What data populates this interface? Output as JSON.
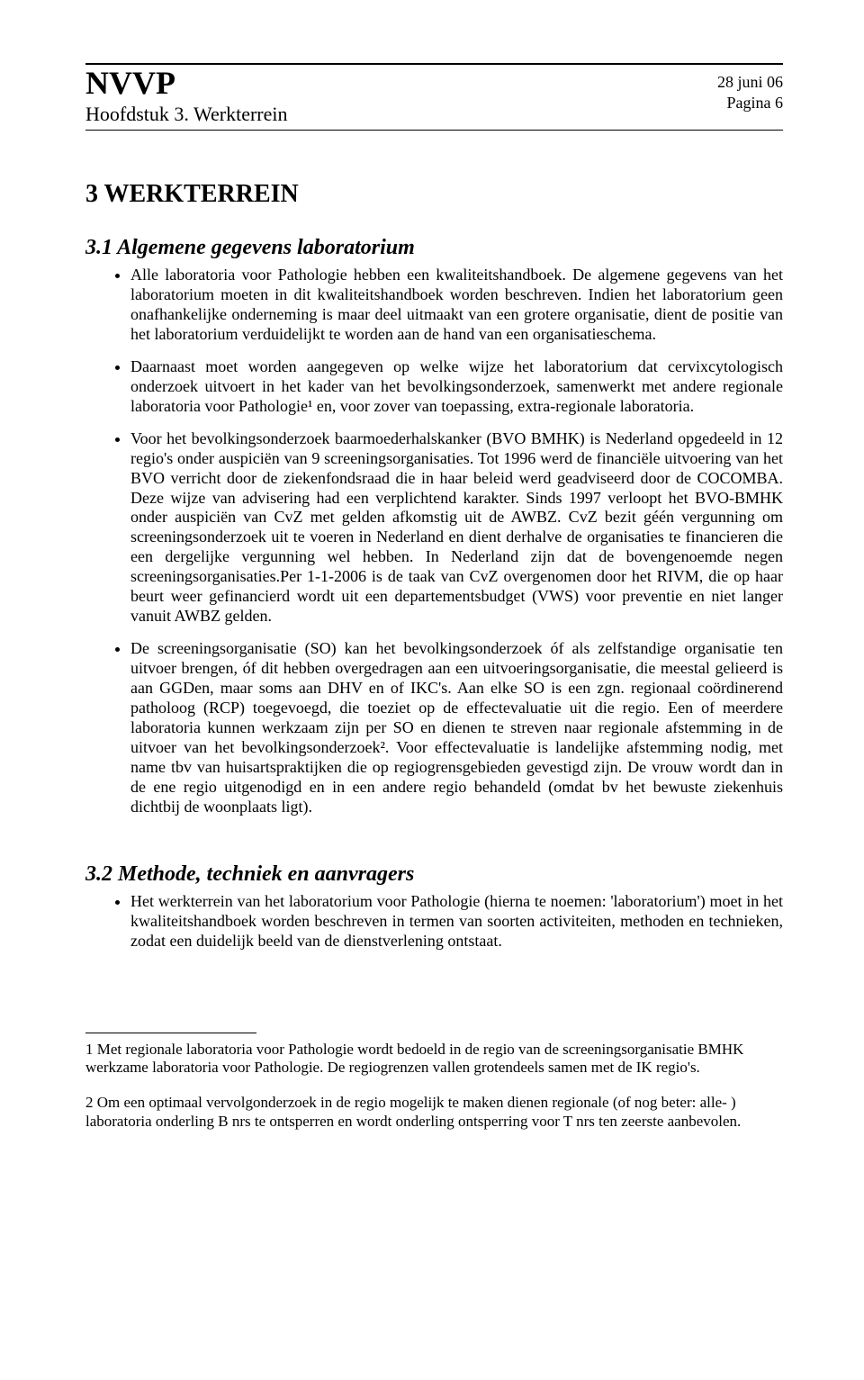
{
  "header": {
    "org": "NVVP",
    "chapter": "Hoofdstuk 3. Werkterrein",
    "date": "28 juni 06",
    "page": "Pagina 6"
  },
  "section3": {
    "title": "3   WERKTERREIN",
    "sub31": {
      "title": "3.1   Algemene gegevens laboratorium",
      "bullets": [
        "Alle laboratoria voor Pathologie hebben een kwaliteitshandboek. De algemene gegevens van het laboratorium moeten in dit kwaliteitshandboek worden beschreven. Indien het laboratorium geen onafhankelijke onderneming is maar deel uitmaakt van een grotere organisatie, dient de positie van het laboratorium verduidelijkt te worden aan de hand van een organisatieschema.",
        "Daarnaast moet worden aangegeven op welke wijze het laboratorium dat cervixcytologisch onderzoek uitvoert in het kader van het bevolkingsonderzoek, samenwerkt met andere regionale laboratoria voor Pathologie¹ en, voor zover van toepassing, extra-regionale laboratoria.",
        "Voor het bevolkingsonderzoek baarmoederhalskanker (BVO BMHK) is Nederland opgedeeld in 12 regio's onder auspiciën van 9 screeningsorganisaties. Tot 1996 werd de financiële uitvoering van het BVO verricht door de ziekenfondsraad die in haar beleid werd geadviseerd door de COCOMBA. Deze wijze van advisering had een verplichtend karakter. Sinds 1997 verloopt het BVO-BMHK onder auspiciën van CvZ met gelden afkomstig uit de AWBZ. CvZ bezit géén vergunning om screeningsonderzoek uit te voeren in Nederland en dient derhalve de organisaties te financieren die een dergelijke vergunning wel hebben. In Nederland zijn dat de bovengenoemde negen screeningsorganisaties.Per 1-1-2006 is de taak van CvZ overgenomen  door het RIVM, die op haar beurt weer gefinancierd wordt uit een departementsbudget (VWS) voor preventie en niet langer vanuit AWBZ gelden.",
        "De screeningsorganisatie (SO) kan het bevolkingsonderzoek óf als zelfstandige organisatie ten uitvoer brengen, óf dit hebben overgedragen aan een uitvoeringsorganisatie, die meestal gelieerd is aan GGDen, maar soms aan DHV en of IKC's. Aan elke SO is een zgn. regionaal coördinerend patholoog (RCP) toegevoegd, die toeziet op de effectevaluatie uit die regio. Een of meerdere laboratoria kunnen werkzaam zijn per SO en dienen te streven naar regionale afstemming in de uitvoer van het bevolkingsonderzoek². Voor effectevaluatie is landelijke afstemming nodig, met name tbv van huisartspraktijken die op regiogrensgebieden gevestigd zijn. De vrouw wordt dan in de ene regio uitgenodigd en in een andere regio behandeld (omdat bv het bewuste ziekenhuis dichtbij de woonplaats ligt)."
      ]
    },
    "sub32": {
      "title": "3.2   Methode, techniek en aanvragers",
      "bullets": [
        "Het werkterrein van het laboratorium voor Pathologie (hierna te noemen: 'laboratorium') moet in het kwaliteitshandboek worden beschreven in termen van soorten activiteiten, methoden en technieken, zodat een duidelijk beeld van de dienstverlening ontstaat."
      ]
    }
  },
  "footnotes": {
    "fn1": "1 Met regionale laboratoria voor Pathologie wordt bedoeld in de regio van de screeningsorganisatie BMHK werkzame laboratoria voor Pathologie. De regiogrenzen vallen grotendeels samen met de IK regio's.",
    "fn2": "2 Om een optimaal vervolgonderzoek in de regio mogelijk te maken dienen regionale (of nog beter: alle- ) laboratoria onderling B nrs te ontsperren en wordt onderling ontsperring voor T nrs ten zeerste aanbevolen."
  }
}
